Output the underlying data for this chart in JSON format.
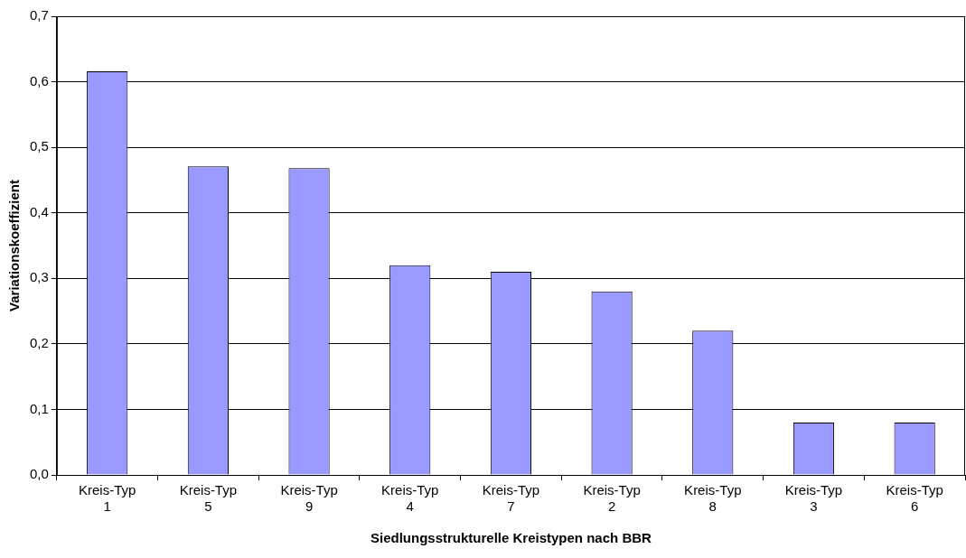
{
  "chart_data": {
    "type": "bar",
    "xlabel": "Siedlungsstrukturelle Kreistypen nach BBR",
    "ylabel": "Variationskoeffizient",
    "categories": [
      "Kreis-Typ 1",
      "Kreis-Typ 5",
      "Kreis-Typ 9",
      "Kreis-Typ 4",
      "Kreis-Typ 7",
      "Kreis-Typ 2",
      "Kreis-Typ 8",
      "Kreis-Typ 3",
      "Kreis-Typ 6"
    ],
    "values": [
      0.616,
      0.471,
      0.468,
      0.32,
      0.31,
      0.28,
      0.22,
      0.08,
      0.08
    ],
    "color": "#9999ff",
    "ylim": [
      0,
      0.7
    ],
    "yticks": [
      {
        "value": 0,
        "label": "0,0"
      },
      {
        "value": 0.1,
        "label": "0,1"
      },
      {
        "value": 0.2,
        "label": "0,2"
      },
      {
        "value": 0.3,
        "label": "0,3"
      },
      {
        "value": 0.4,
        "label": "0,4"
      },
      {
        "value": 0.5,
        "label": "0,5"
      },
      {
        "value": 0.6,
        "label": "0,6"
      },
      {
        "value": 0.7,
        "label": "0,7"
      }
    ],
    "grid": "y",
    "legend": false
  }
}
